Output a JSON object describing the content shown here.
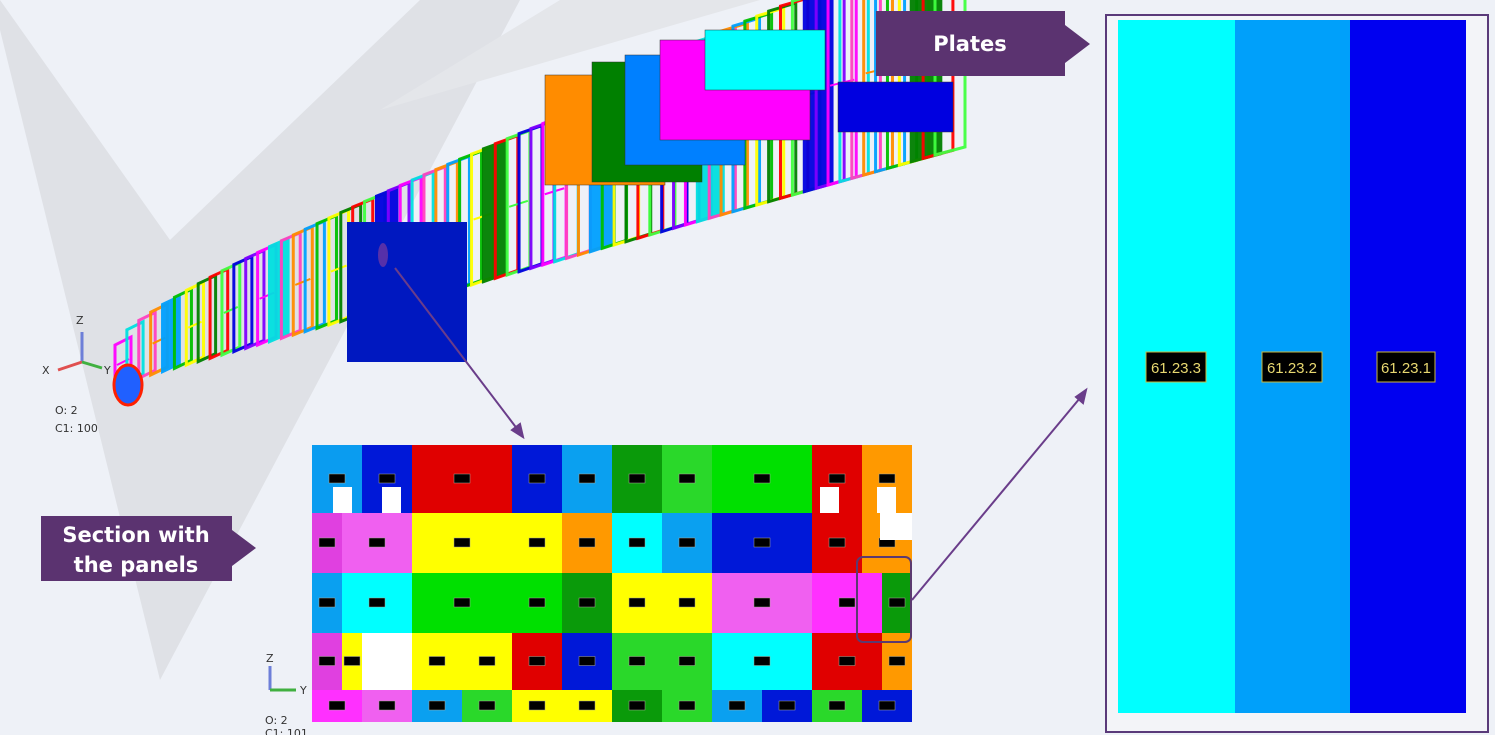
{
  "callouts": {
    "plates": "Plates",
    "section": [
      "Section with",
      "the panels"
    ]
  },
  "hull_view": {
    "axes": {
      "x": "X",
      "y": "Y",
      "z": "Z"
    },
    "info": [
      "O: 2",
      "C1: 100"
    ]
  },
  "section_view": {
    "axes": {
      "y": "Y",
      "z": "Z"
    },
    "info": [
      "O: 2",
      "C1: 101"
    ]
  },
  "plates": [
    "61.23.3",
    "61.23.2",
    "61.23.1"
  ]
}
